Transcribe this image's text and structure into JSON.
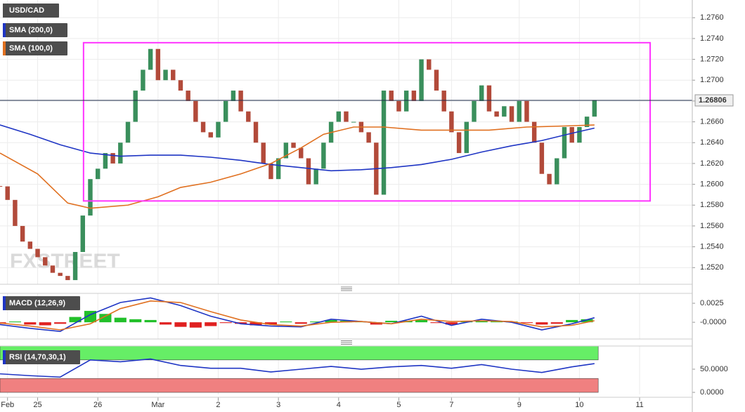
{
  "chart_data": [
    {
      "type": "candlestick",
      "title": "USD/CAD",
      "watermark": "FXSTREET",
      "x": [
        0,
        1,
        2,
        3,
        4,
        5,
        6,
        7,
        8,
        9,
        10,
        11,
        12,
        13,
        14,
        15,
        16,
        17,
        18,
        19,
        20,
        21,
        22,
        23,
        24,
        25,
        26,
        27,
        28,
        29,
        30,
        31,
        32,
        33,
        34,
        35,
        36,
        37,
        38,
        39,
        40,
        41,
        42,
        43,
        44,
        45,
        46,
        47,
        48,
        49,
        50,
        51,
        52,
        53,
        54,
        55,
        56,
        57,
        58,
        59,
        60,
        61,
        62,
        63,
        64,
        65,
        66,
        67,
        68,
        69,
        70,
        71,
        72,
        73,
        74,
        75,
        76,
        77,
        78,
        79
      ],
      "close": [
        1.2598,
        1.2585,
        1.256,
        1.2545,
        1.2538,
        1.253,
        1.2522,
        1.2515,
        1.2512,
        1.2508,
        1.2535,
        1.257,
        1.2605,
        1.2615,
        1.263,
        1.262,
        1.264,
        1.266,
        1.269,
        1.271,
        1.273,
        1.27,
        1.271,
        1.27,
        1.269,
        1.268,
        1.266,
        1.265,
        1.2645,
        1.266,
        1.268,
        1.269,
        1.267,
        1.266,
        1.264,
        1.262,
        1.2605,
        1.2625,
        1.264,
        1.2635,
        1.2625,
        1.26,
        1.2615,
        1.264,
        1.266,
        1.267,
        1.266,
        1.266,
        1.265,
        1.264,
        1.259,
        1.269,
        1.268,
        1.267,
        1.269,
        1.268,
        1.272,
        1.271,
        1.269,
        1.267,
        1.265,
        1.263,
        1.266,
        1.268,
        1.2695,
        1.267,
        1.2665,
        1.2675,
        1.266,
        1.268,
        1.266,
        1.264,
        1.261,
        1.26,
        1.2625,
        1.2655,
        1.264,
        1.2655,
        1.2665,
        1.2681
      ],
      "up_color": "#3a8f5c",
      "down_color": "#b24a3a",
      "series": [
        {
          "name": "SMA (200,0)",
          "color": "#1f35c4",
          "x": [
            0,
            4,
            8,
            12,
            16,
            20,
            24,
            28,
            32,
            36,
            40,
            44,
            48,
            52,
            56,
            60,
            64,
            68,
            72,
            76,
            79
          ],
          "values": [
            1.2657,
            1.2648,
            1.2638,
            1.263,
            1.2627,
            1.2628,
            1.2628,
            1.2626,
            1.2623,
            1.2619,
            1.2616,
            1.2613,
            1.2614,
            1.2616,
            1.2619,
            1.2624,
            1.2631,
            1.2637,
            1.2642,
            1.2649,
            1.2654
          ]
        },
        {
          "name": "SMA (100,0)",
          "color": "#e07020",
          "x": [
            0,
            5,
            9,
            12,
            17,
            21,
            24,
            28,
            32,
            36,
            40,
            43,
            47,
            51,
            56,
            61,
            65,
            70,
            75,
            79
          ],
          "values": [
            1.263,
            1.261,
            1.2582,
            1.2577,
            1.258,
            1.2588,
            1.2597,
            1.2602,
            1.261,
            1.262,
            1.2635,
            1.2648,
            1.2655,
            1.2655,
            1.2652,
            1.2652,
            1.2652,
            1.2655,
            1.2656,
            1.2657
          ]
        }
      ],
      "box": {
        "xlim": [
          11.1,
          86.4
        ],
        "ylim": [
          1.2584,
          1.2736
        ],
        "color": "#ff33ff"
      },
      "last": {
        "value": 1.26806,
        "label": "1.26806"
      },
      "xlim": [
        0,
        92
      ],
      "ylim": [
        1.2504,
        1.2777
      ],
      "grid": true,
      "yticks": [
        {
          "value": 1.252,
          "label": "1.2520"
        },
        {
          "value": 1.254,
          "label": "1.2540"
        },
        {
          "value": 1.256,
          "label": "1.2560"
        },
        {
          "value": 1.258,
          "label": "1.2580"
        },
        {
          "value": 1.26,
          "label": "1.2600"
        },
        {
          "value": 1.262,
          "label": "1.2620"
        },
        {
          "value": 1.264,
          "label": "1.2640"
        },
        {
          "value": 1.266,
          "label": "1.2660"
        },
        {
          "value": 1.268,
          "label": "1.2680"
        },
        {
          "value": 1.27,
          "label": "1.2700"
        },
        {
          "value": 1.272,
          "label": "1.2720"
        },
        {
          "value": 1.274,
          "label": "1.2740"
        },
        {
          "value": 1.276,
          "label": "1.2760"
        }
      ],
      "xticks": [
        {
          "value": 1,
          "label": "Feb"
        },
        {
          "value": 5,
          "label": "25"
        },
        {
          "value": 13,
          "label": "26"
        },
        {
          "value": 21,
          "label": "Mar"
        },
        {
          "value": 29,
          "label": "2"
        },
        {
          "value": 37,
          "label": "3"
        },
        {
          "value": 45,
          "label": "4"
        },
        {
          "value": 53,
          "label": "5"
        },
        {
          "value": 60,
          "label": "7"
        },
        {
          "value": 69,
          "label": "9"
        },
        {
          "value": 77,
          "label": "10"
        },
        {
          "value": 85,
          "label": "11"
        }
      ]
    },
    {
      "type": "macd",
      "title": "MACD (12,26,9)",
      "histogram": {
        "x": [
          0,
          2,
          4,
          6,
          8,
          10,
          12,
          14,
          16,
          18,
          20,
          22,
          24,
          26,
          28,
          30,
          32,
          34,
          36,
          38,
          40,
          42,
          44,
          46,
          48,
          50,
          52,
          54,
          56,
          58,
          60,
          62,
          64,
          66,
          68,
          70,
          72,
          74,
          76,
          78
        ],
        "values": [
          -0.0002,
          0.0001,
          -0.0003,
          -0.0004,
          -0.0002,
          0.0007,
          0.0015,
          0.0011,
          0.0006,
          0.0004,
          0.0003,
          -0.0003,
          -0.0006,
          -0.0007,
          -0.0005,
          -0.0001,
          -0.0002,
          -0.0004,
          -0.0003,
          0.0001,
          -0.0002,
          0.0001,
          0.0003,
          0.0002,
          0.0001,
          -0.0003,
          0.0002,
          0.0002,
          0.0003,
          -0.0001,
          -0.0003,
          0.0001,
          0.0002,
          0.0001,
          0.0001,
          -0.0001,
          -0.0003,
          -0.0002,
          0.0003,
          0.0004
        ]
      },
      "up_color": "#22c02a",
      "down_color": "#e02020",
      "series": [
        {
          "color": "#1f35c4",
          "x": [
            0,
            4,
            8,
            12,
            16,
            20,
            24,
            28,
            32,
            36,
            40,
            44,
            48,
            52,
            56,
            60,
            64,
            68,
            72,
            76,
            79
          ],
          "values": [
            -0.0003,
            -0.0008,
            -0.0012,
            0.001,
            0.0026,
            0.0032,
            0.0022,
            0.0008,
            -0.0002,
            -0.0005,
            -0.0006,
            0.0004,
            0.0001,
            -0.0002,
            0.0008,
            -0.0004,
            0.0004,
            0.0,
            -0.001,
            -0.0002,
            0.0006
          ]
        },
        {
          "color": "#e07020",
          "x": [
            0,
            4,
            8,
            12,
            16,
            20,
            24,
            28,
            32,
            36,
            40,
            44,
            48,
            52,
            56,
            60,
            64,
            68,
            72,
            76,
            79
          ],
          "values": [
            -0.0001,
            -0.0005,
            -0.001,
            -0.0002,
            0.0018,
            0.0028,
            0.0026,
            0.0014,
            0.0003,
            -0.0003,
            -0.0005,
            0.0,
            0.0001,
            -0.0002,
            0.0004,
            0.0001,
            0.0002,
            0.0001,
            -0.0006,
            -0.0004,
            0.0002
          ]
        }
      ],
      "ylim": [
        -0.0022,
        0.0038
      ],
      "yticks": [
        0.0025,
        {
          "value": 0,
          "label": "-0.0000"
        }
      ]
    },
    {
      "type": "line",
      "title": "RSI (14,70,30,1)",
      "overbought": 70,
      "oversold": 30,
      "overbought_color": "#66ee66",
      "oversold_color": "#f08080",
      "series": [
        {
          "color": "#1f35c4",
          "x": [
            0,
            4,
            8,
            12,
            16,
            20,
            24,
            28,
            32,
            36,
            40,
            44,
            48,
            52,
            56,
            60,
            64,
            68,
            72,
            76,
            79
          ],
          "values": [
            40,
            36,
            33,
            70,
            66,
            72,
            58,
            52,
            52,
            44,
            50,
            56,
            50,
            55,
            58,
            52,
            60,
            50,
            43,
            55,
            62
          ]
        }
      ],
      "ylim": [
        -4.5,
        100
      ],
      "yticks": [
        {
          "value": 50,
          "label": "50.0000"
        },
        {
          "value": 0,
          "label": "0.0000"
        }
      ]
    }
  ]
}
